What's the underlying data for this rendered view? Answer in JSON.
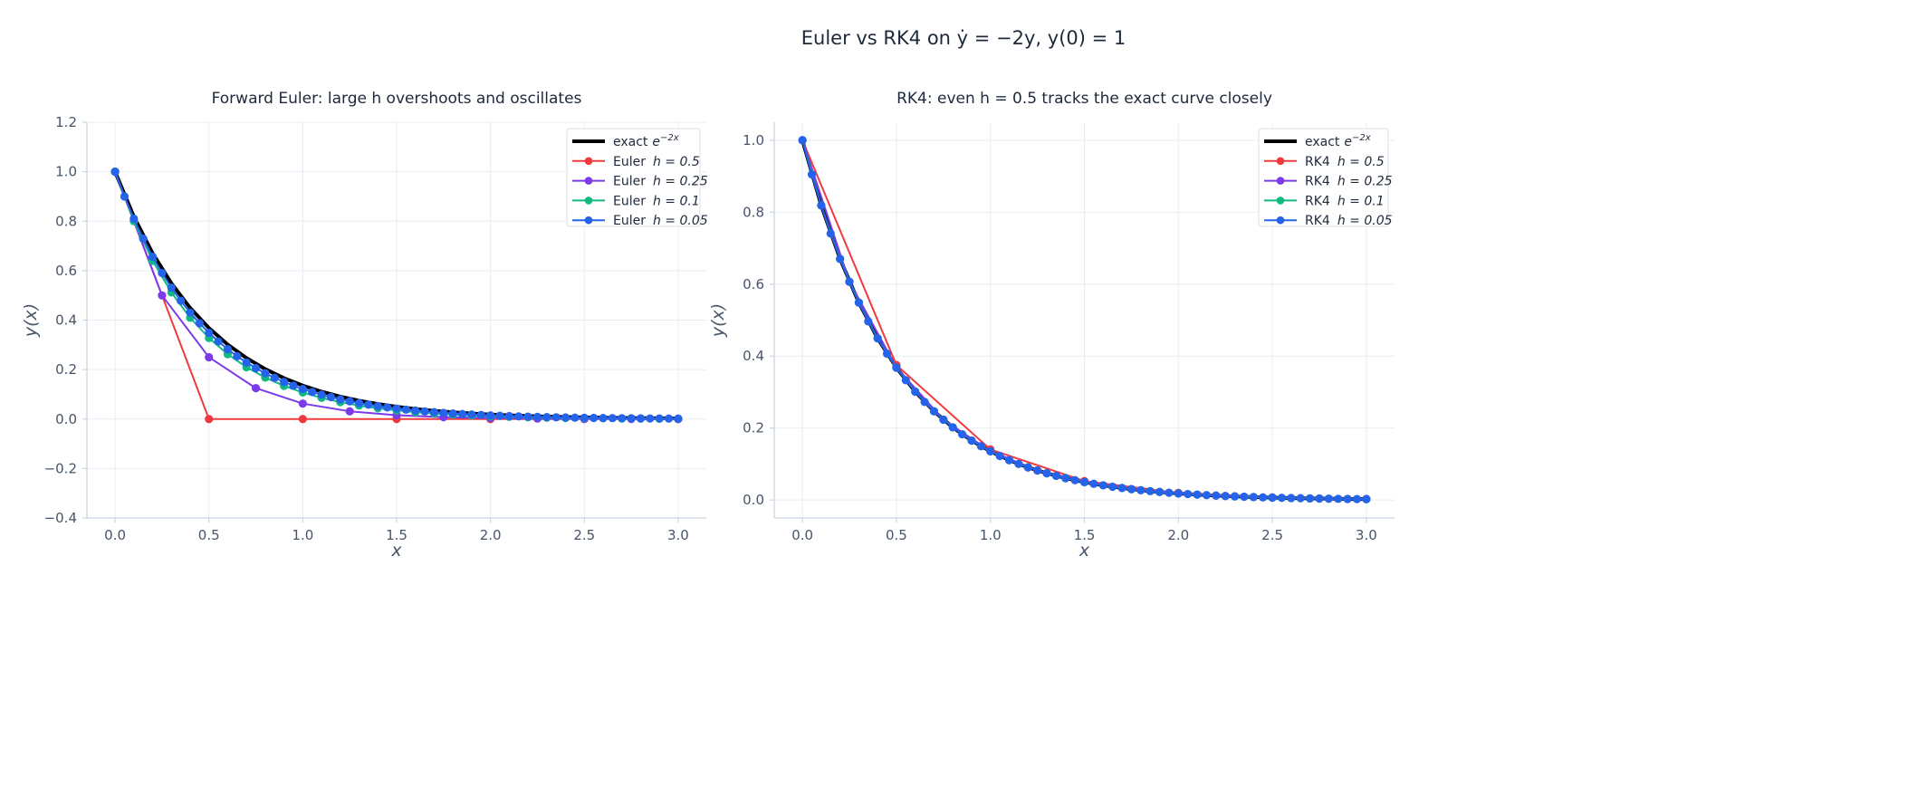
{
  "suptitle": "Euler vs RK4 on ẏ = −2y,  y(0) = 1",
  "colors": {
    "exact": "#000000",
    "h0.5": "#ef3b3f",
    "h0.25": "#7c3aed",
    "h0.1": "#10b981",
    "h0.05": "#2563eb",
    "grid": "#e8edf4",
    "spine": "#cbd5e1",
    "tick": "#475569"
  },
  "chart_data": [
    {
      "type": "line",
      "title": "Forward Euler: large h overshoots and oscillates",
      "xlabel": "x",
      "ylabel": "y(x)",
      "xlim": [
        -0.15,
        3.15
      ],
      "ylim": [
        -0.4,
        1.2
      ],
      "xticks": [
        "0.0",
        "0.5",
        "1.0",
        "1.5",
        "2.0",
        "2.5",
        "3.0"
      ],
      "yticks": [
        "−0.4",
        "−0.2",
        "0.0",
        "0.2",
        "0.4",
        "0.6",
        "0.8",
        "1.0",
        "1.2"
      ],
      "grid": true,
      "legend_position": "top-right",
      "exact": {
        "name": "exact",
        "formula_base": "e",
        "formula_exp": "−2x",
        "x": [
          0,
          0.1,
          0.2,
          0.3,
          0.4,
          0.5,
          0.6,
          0.7,
          0.8,
          0.9,
          1.0,
          1.1,
          1.2,
          1.3,
          1.4,
          1.5,
          1.6,
          1.7,
          1.8,
          1.9,
          2.0,
          2.1,
          2.2,
          2.3,
          2.4,
          2.5,
          2.6,
          2.7,
          2.8,
          2.9,
          3.0
        ],
        "y": [
          1,
          0.8187,
          0.6703,
          0.5488,
          0.4493,
          0.3679,
          0.3012,
          0.2466,
          0.2019,
          0.1653,
          0.1353,
          0.1108,
          0.0907,
          0.0743,
          0.0608,
          0.0498,
          0.0408,
          0.0334,
          0.0273,
          0.0224,
          0.0183,
          0.015,
          0.0123,
          0.0101,
          0.0082,
          0.0067,
          0.0055,
          0.0045,
          0.0037,
          0.003,
          0.0025
        ]
      },
      "series": [
        {
          "name": "Euler",
          "param": "h = 0.5",
          "h": 0.5,
          "color_key": "h0.5",
          "y": [
            1,
            0,
            0,
            0,
            0,
            0,
            0
          ]
        },
        {
          "name": "Euler",
          "param": "h = 0.25",
          "h": 0.25,
          "color_key": "h0.25",
          "y": [
            1,
            0.5,
            0.25,
            0.125,
            0.0625,
            0.0313,
            0.0156,
            0.0078,
            0.0039,
            0.002,
            0.001,
            0.0005,
            0.0002
          ]
        },
        {
          "name": "Euler",
          "param": "h = 0.1",
          "h": 0.1,
          "color_key": "h0.1",
          "y": [
            1,
            0.8,
            0.64,
            0.512,
            0.4096,
            0.3277,
            0.2621,
            0.2097,
            0.1678,
            0.1342,
            0.1074,
            0.0859,
            0.0687,
            0.055,
            0.044,
            0.0352,
            0.0281,
            0.0225,
            0.018,
            0.0144,
            0.0115,
            0.0092,
            0.0074,
            0.0059,
            0.0047,
            0.0038,
            0.003,
            0.0024,
            0.0019,
            0.0015,
            0.0012
          ]
        },
        {
          "name": "Euler",
          "param": "h = 0.05",
          "h": 0.05,
          "color_key": "h0.05",
          "y": [
            1,
            0.9,
            0.81,
            0.729,
            0.6561,
            0.5905,
            0.5314,
            0.4783,
            0.4305,
            0.3874,
            0.3487,
            0.3138,
            0.2824,
            0.2542,
            0.2288,
            0.2059,
            0.1853,
            0.1668,
            0.1501,
            0.1351,
            0.1216,
            0.1094,
            0.0985,
            0.0886,
            0.0798,
            0.0718,
            0.0646,
            0.0581,
            0.0523,
            0.0471,
            0.0424,
            0.0382,
            0.0343,
            0.0309,
            0.0278,
            0.025,
            0.0225,
            0.0203,
            0.0182,
            0.0164,
            0.0148,
            0.0133,
            0.012,
            0.0108,
            0.0097,
            0.0087,
            0.0079,
            0.0071,
            0.0064,
            0.0057,
            0.0052,
            0.0046,
            0.0042,
            0.0038,
            0.0034,
            0.0031,
            0.0027,
            0.0025,
            0.0022,
            0.002,
            0.0018
          ]
        }
      ]
    },
    {
      "type": "line",
      "title": "RK4: even h = 0.5 tracks the exact curve closely",
      "xlabel": "x",
      "ylabel": "y(x)",
      "xlim": [
        -0.15,
        3.15
      ],
      "ylim": [
        -0.05,
        1.05
      ],
      "xticks": [
        "0.0",
        "0.5",
        "1.0",
        "1.5",
        "2.0",
        "2.5",
        "3.0"
      ],
      "yticks": [
        "0.0",
        "0.2",
        "0.4",
        "0.6",
        "0.8",
        "1.0"
      ],
      "grid": true,
      "legend_position": "top-right",
      "exact": {
        "name": "exact",
        "formula_base": "e",
        "formula_exp": "−2x",
        "x": [
          0,
          0.1,
          0.2,
          0.3,
          0.4,
          0.5,
          0.6,
          0.7,
          0.8,
          0.9,
          1.0,
          1.1,
          1.2,
          1.3,
          1.4,
          1.5,
          1.6,
          1.7,
          1.8,
          1.9,
          2.0,
          2.1,
          2.2,
          2.3,
          2.4,
          2.5,
          2.6,
          2.7,
          2.8,
          2.9,
          3.0
        ],
        "y": [
          1,
          0.8187,
          0.6703,
          0.5488,
          0.4493,
          0.3679,
          0.3012,
          0.2466,
          0.2019,
          0.1653,
          0.1353,
          0.1108,
          0.0907,
          0.0743,
          0.0608,
          0.0498,
          0.0408,
          0.0334,
          0.0273,
          0.0224,
          0.0183,
          0.015,
          0.0123,
          0.0101,
          0.0082,
          0.0067,
          0.0055,
          0.0045,
          0.0037,
          0.003,
          0.0025
        ]
      },
      "series": [
        {
          "name": "RK4",
          "param": "h = 0.5",
          "h": 0.5,
          "color_key": "h0.5",
          "y": [
            1,
            0.375,
            0.1406,
            0.0527,
            0.0198,
            0.0074,
            0.0028
          ]
        },
        {
          "name": "RK4",
          "param": "h = 0.25",
          "h": 0.25,
          "color_key": "h0.25",
          "y": [
            1,
            0.6068,
            0.3682,
            0.2234,
            0.1355,
            0.0822,
            0.0499,
            0.0303,
            0.0184,
            0.0111,
            0.0068,
            0.0041,
            0.0025
          ]
        },
        {
          "name": "RK4",
          "param": "h = 0.1",
          "h": 0.1,
          "color_key": "h0.1",
          "y": [
            1,
            0.8187,
            0.6703,
            0.5488,
            0.4493,
            0.3679,
            0.3012,
            0.2466,
            0.2019,
            0.1653,
            0.1353,
            0.1108,
            0.0907,
            0.0743,
            0.0608,
            0.0498,
            0.0408,
            0.0334,
            0.0273,
            0.0224,
            0.0183,
            0.015,
            0.0123,
            0.0101,
            0.0082,
            0.0067,
            0.0055,
            0.0045,
            0.0037,
            0.003,
            0.0025
          ]
        },
        {
          "name": "RK4",
          "param": "h = 0.05",
          "h": 0.05,
          "color_key": "h0.05",
          "y": [
            1,
            0.9048,
            0.8187,
            0.7408,
            0.6703,
            0.6065,
            0.5488,
            0.4966,
            0.4493,
            0.4066,
            0.3679,
            0.3329,
            0.3012,
            0.2725,
            0.2466,
            0.2231,
            0.2019,
            0.1827,
            0.1653,
            0.1496,
            0.1353,
            0.1225,
            0.1108,
            0.1003,
            0.0907,
            0.0821,
            0.0743,
            0.0672,
            0.0608,
            0.055,
            0.0498,
            0.045,
            0.0408,
            0.0369,
            0.0334,
            0.0302,
            0.0273,
            0.0247,
            0.0224,
            0.0202,
            0.0183,
            0.0166,
            0.015,
            0.0136,
            0.0123,
            0.0111,
            0.0101,
            0.0091,
            0.0082,
            0.0074,
            0.0067,
            0.0061,
            0.0055,
            0.005,
            0.0045,
            0.0041,
            0.0037,
            0.0033,
            0.003,
            0.0027,
            0.0025
          ]
        }
      ]
    }
  ]
}
